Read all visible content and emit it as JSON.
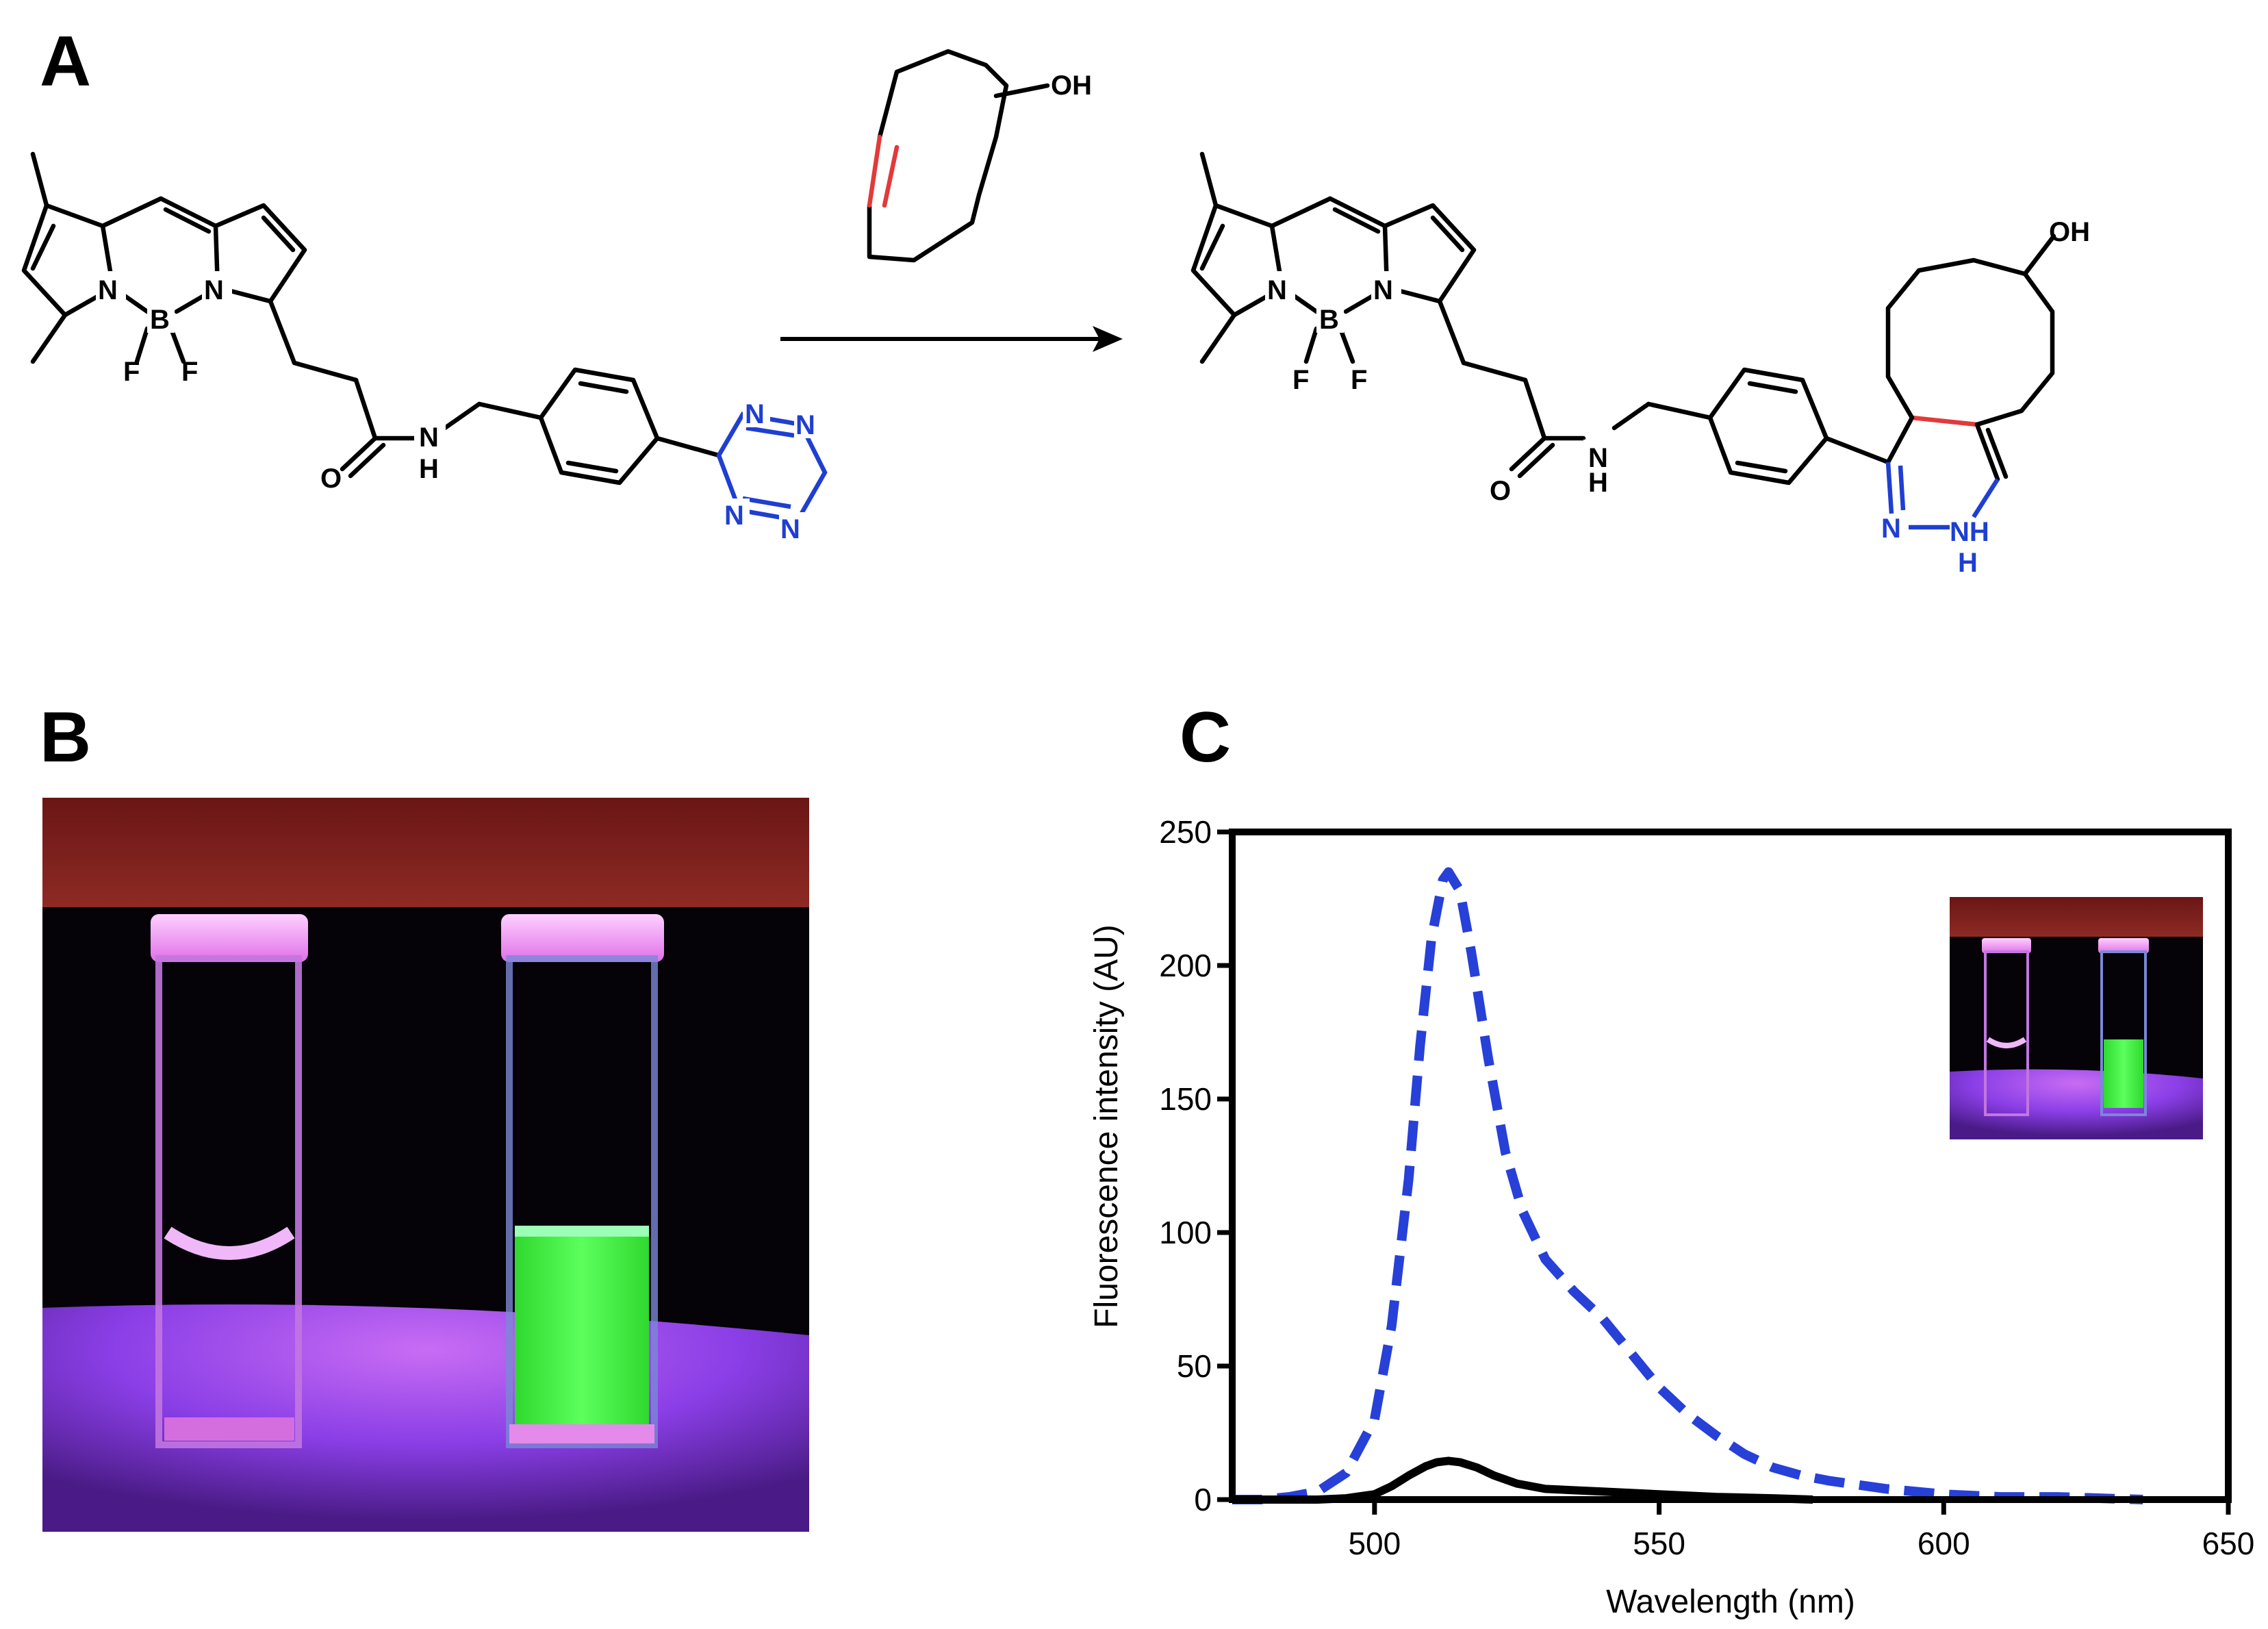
{
  "panels": {
    "a": {
      "letter": "A"
    },
    "b": {
      "letter": "B"
    },
    "c": {
      "letter": "C"
    }
  },
  "scheme": {
    "reactant_labels": {
      "N1": "N",
      "N2": "N",
      "B": "B",
      "F1": "F",
      "F2": "F",
      "O": "O",
      "NH_N": "N",
      "NH_H": "H"
    },
    "tetrazine_labels": [
      "N",
      "N",
      "N",
      "N"
    ],
    "reagent_label": "OH",
    "product_labels": {
      "N1": "N",
      "N2": "N",
      "B": "B",
      "F1": "F",
      "F2": "F",
      "O": "O",
      "NH_N": "N",
      "NH_H": "H",
      "OH": "OH"
    },
    "dihydropyridazine_labels": {
      "N": "N",
      "NH": "NH",
      "H": "H"
    },
    "colors": {
      "nitrogen": "#1f3fd1",
      "new_bond": "#e23a3a"
    }
  },
  "photo": {
    "description_colors": {
      "background": "#000000",
      "top": "#7a1e1e",
      "glow": "#a83cf0",
      "green": "#3dff3d"
    }
  },
  "chart_data": {
    "type": "line",
    "xlabel": "Wavelength (nm)",
    "ylabel": "Fluorescence intensity (AU)",
    "xlim": [
      475,
      650
    ],
    "ylim": [
      0,
      250
    ],
    "xticks": [
      500,
      550,
      600,
      650
    ],
    "yticks": [
      0,
      50,
      100,
      150,
      200,
      250
    ],
    "grid": false,
    "series": [
      {
        "style": "dashed",
        "color": "#2740d8",
        "x": [
          475,
          480,
          485,
          490,
          495,
          500,
          503,
          506,
          508,
          510,
          512,
          513,
          515,
          517,
          520,
          523,
          526,
          530,
          535,
          540,
          545,
          550,
          555,
          560,
          565,
          570,
          575,
          580,
          590,
          600,
          610,
          620,
          635
        ],
        "y": [
          0,
          0,
          1,
          3,
          10,
          30,
          65,
          120,
          170,
          210,
          232,
          235,
          228,
          205,
          165,
          130,
          108,
          90,
          78,
          68,
          55,
          42,
          32,
          24,
          17,
          12,
          9,
          7,
          4,
          2,
          1,
          1,
          0
        ]
      },
      {
        "style": "solid",
        "color": "#000000",
        "x": [
          475,
          480,
          490,
          495,
          500,
          503,
          506,
          509,
          511,
          513,
          515,
          518,
          521,
          525,
          530,
          540,
          550,
          560,
          570,
          577
        ],
        "y": [
          0,
          0,
          0,
          0.5,
          2,
          5,
          9,
          12.5,
          14,
          14.5,
          14,
          12,
          9,
          6,
          4,
          3,
          2,
          1,
          0.5,
          0
        ]
      }
    ]
  }
}
